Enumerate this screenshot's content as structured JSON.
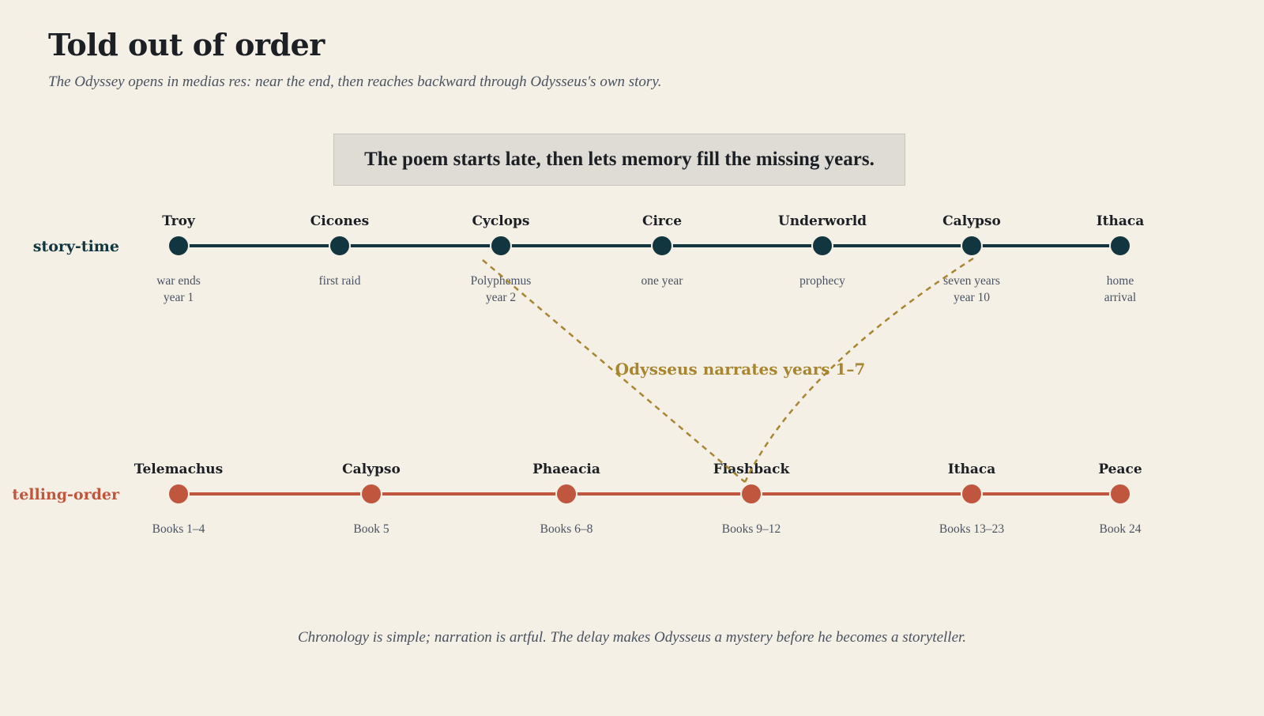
{
  "title": "Told out of order",
  "subtitle": "The Odyssey opens in medias res: near the end, then reaches backward through Odysseus's own story.",
  "callout": "The poem starts late, then lets memory fill the missing years.",
  "footer": "Chronology is simple; narration is artful. The delay makes Odysseus a mystery before he becomes a storyteller.",
  "colors": {
    "background": "#f5f0e6",
    "story": "#12363f",
    "telling": "#bf563d",
    "connector": "#a8862f"
  },
  "story_lane": {
    "label": "story-time",
    "nodes": [
      {
        "name": "Troy",
        "note": [
          "war ends",
          "year 1"
        ]
      },
      {
        "name": "Cicones",
        "note": [
          "first raid"
        ]
      },
      {
        "name": "Cyclops",
        "note": [
          "Polyphemus",
          "year 2"
        ]
      },
      {
        "name": "Circe",
        "note": [
          "one year"
        ]
      },
      {
        "name": "Underworld",
        "note": [
          "prophecy"
        ]
      },
      {
        "name": "Calypso",
        "note": [
          "seven years",
          "year 10"
        ]
      },
      {
        "name": "Ithaca",
        "note": [
          "home",
          "arrival"
        ]
      }
    ]
  },
  "telling_lane": {
    "label": "telling-order",
    "nodes": [
      {
        "name": "Telemachus",
        "note": [
          "Books 1–4"
        ]
      },
      {
        "name": "Calypso",
        "note": [
          "Book 5"
        ]
      },
      {
        "name": "Phaeacia",
        "note": [
          "Books 6–8"
        ]
      },
      {
        "name": "Flashback",
        "note": [
          "Books 9–12"
        ]
      },
      {
        "name": "Ithaca",
        "note": [
          "Books 13–23"
        ]
      },
      {
        "name": "Peace",
        "note": [
          "Book 24"
        ]
      }
    ]
  },
  "connector": {
    "label": "Odysseus narrates years 1–7",
    "from_story_nodes": [
      "Cyclops",
      "Calypso"
    ],
    "to_telling_node": "Flashback"
  }
}
